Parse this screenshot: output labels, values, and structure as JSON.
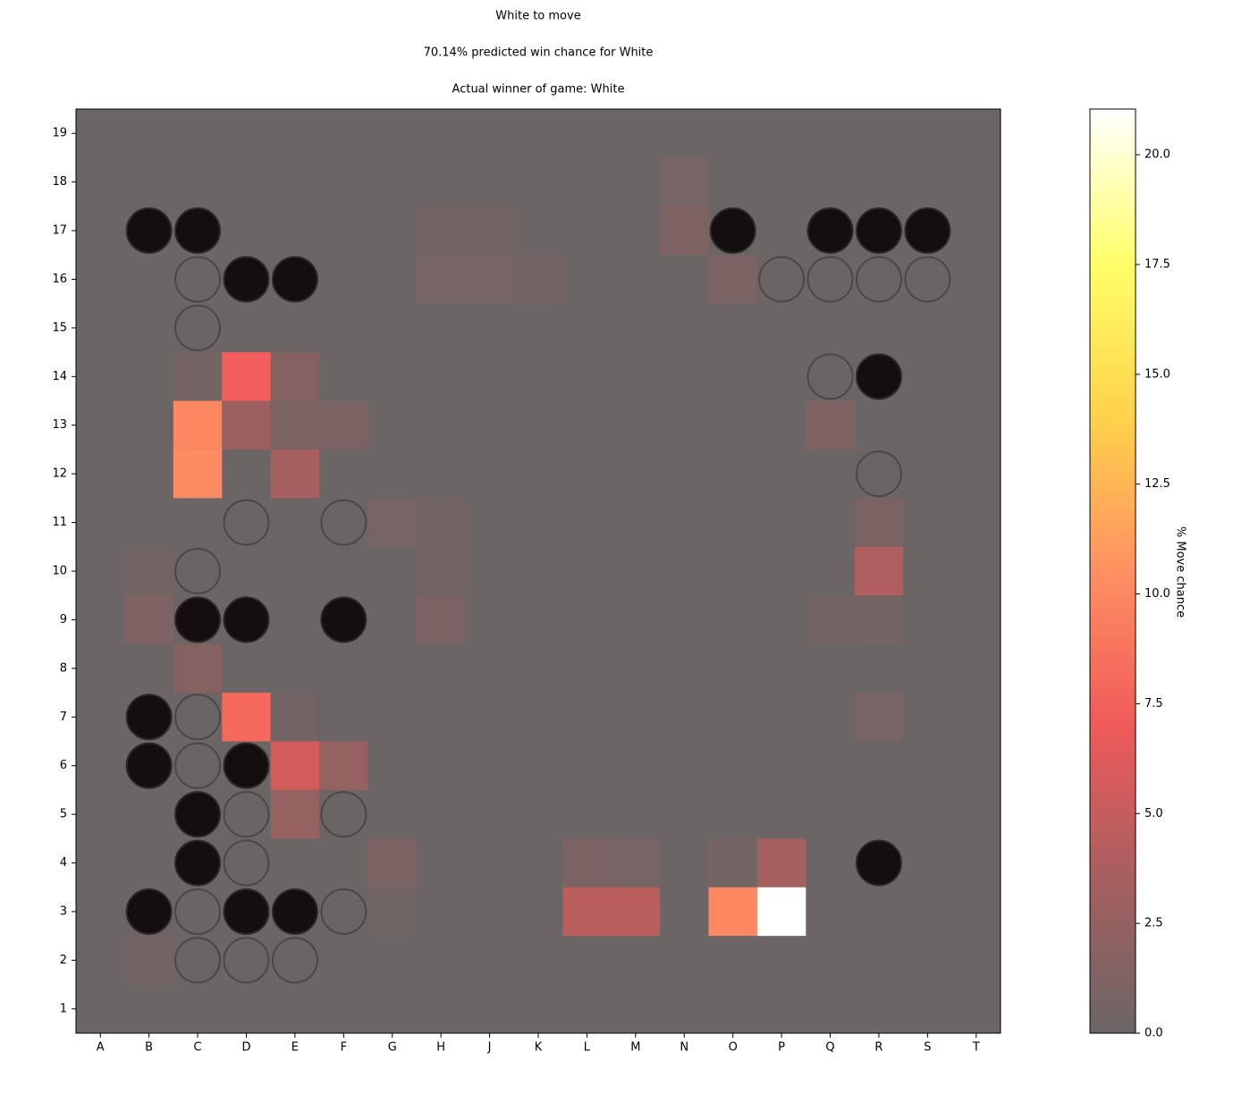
{
  "chart_data": {
    "type": "heatmap",
    "title": "White to move",
    "subtitle": "70.14% predicted win chance for White",
    "annotation": "Actual winner of game: White",
    "categories": [
      "A",
      "B",
      "C",
      "D",
      "E",
      "F",
      "G",
      "H",
      "J",
      "K",
      "L",
      "M",
      "N",
      "O",
      "P",
      "Q",
      "R",
      "S",
      "T"
    ],
    "ylim": [
      0.5,
      19.5
    ],
    "yticks": [
      1,
      2,
      3,
      4,
      5,
      6,
      7,
      8,
      9,
      10,
      11,
      12,
      13,
      14,
      15,
      16,
      17,
      18,
      19
    ],
    "board_color": "#6b6565",
    "colormap": [
      "#6b6565",
      "#a65f5f",
      "#f05a5a",
      "#ff9062",
      "#ffd24a",
      "#ffff6a",
      "#ffffff"
    ],
    "colorbar_label": "% Move chance",
    "colorbar_lim": [
      0,
      21.04
    ],
    "colorbar_ticks": [
      {
        "value": 0,
        "label": "0.0"
      },
      2.5,
      {
        "value": 5,
        "label": "5.0"
      },
      7.5,
      {
        "value": 10,
        "label": "10.0"
      },
      12.5,
      {
        "value": 15,
        "label": "15.0"
      },
      17.5,
      {
        "value": 20,
        "label": "20.0"
      }
    ],
    "heat": [
      {
        "x": "N",
        "y": 18,
        "value": 0.7
      },
      {
        "x": "N",
        "y": 17,
        "value": 1.2
      },
      {
        "x": "H",
        "y": 17,
        "value": 0.5
      },
      {
        "x": "J",
        "y": 17,
        "value": 0.5
      },
      {
        "x": "H",
        "y": 16,
        "value": 0.7
      },
      {
        "x": "J",
        "y": 16,
        "value": 0.7
      },
      {
        "x": "K",
        "y": 16,
        "value": 0.6
      },
      {
        "x": "O",
        "y": 16,
        "value": 1.0
      },
      {
        "x": "C",
        "y": 14,
        "value": 0.6
      },
      {
        "x": "D",
        "y": 14,
        "value": 7.3
      },
      {
        "x": "E",
        "y": 14,
        "value": 1.5
      },
      {
        "x": "C",
        "y": 13,
        "value": 10
      },
      {
        "x": "D",
        "y": 13,
        "value": 3
      },
      {
        "x": "E",
        "y": 13,
        "value": 1
      },
      {
        "x": "F",
        "y": 13,
        "value": 1
      },
      {
        "x": "Q",
        "y": 13,
        "value": 1.2
      },
      {
        "x": "C",
        "y": 12,
        "value": 10.2
      },
      {
        "x": "E",
        "y": 12,
        "value": 3.5
      },
      {
        "x": "G",
        "y": 11,
        "value": 0.7
      },
      {
        "x": "H",
        "y": 11,
        "value": 0.5
      },
      {
        "x": "R",
        "y": 11,
        "value": 1.0
      },
      {
        "x": "B",
        "y": 10,
        "value": 0.5
      },
      {
        "x": "H",
        "y": 10,
        "value": 0.5
      },
      {
        "x": "R",
        "y": 10,
        "value": 4
      },
      {
        "x": "B",
        "y": 9,
        "value": 1.2
      },
      {
        "x": "H",
        "y": 9,
        "value": 1
      },
      {
        "x": "Q",
        "y": 9,
        "value": 0.5
      },
      {
        "x": "R",
        "y": 9,
        "value": 0.6
      },
      {
        "x": "C",
        "y": 8,
        "value": 1.5
      },
      {
        "x": "D",
        "y": 7,
        "value": 8
      },
      {
        "x": "E",
        "y": 7,
        "value": 0.4
      },
      {
        "x": "R",
        "y": 7,
        "value": 0.7
      },
      {
        "x": "E",
        "y": 6,
        "value": 5.5
      },
      {
        "x": "F",
        "y": 6,
        "value": 2.5
      },
      {
        "x": "E",
        "y": 5,
        "value": 2.5
      },
      {
        "x": "G",
        "y": 4,
        "value": 1.0
      },
      {
        "x": "L",
        "y": 4,
        "value": 1
      },
      {
        "x": "M",
        "y": 4,
        "value": 0.7
      },
      {
        "x": "O",
        "y": 4,
        "value": 0.6
      },
      {
        "x": "P",
        "y": 4,
        "value": 3.5
      },
      {
        "x": "G",
        "y": 3,
        "value": 0.3
      },
      {
        "x": "L",
        "y": 3,
        "value": 4.5
      },
      {
        "x": "M",
        "y": 3,
        "value": 4.5
      },
      {
        "x": "O",
        "y": 3,
        "value": 10
      },
      {
        "x": "P",
        "y": 3,
        "value": 21
      },
      {
        "x": "B",
        "y": 2,
        "value": 0.5
      }
    ],
    "stones": {
      "black": [
        {
          "x": "B",
          "y": 17
        },
        {
          "x": "C",
          "y": 17
        },
        {
          "x": "O",
          "y": 17
        },
        {
          "x": "Q",
          "y": 17
        },
        {
          "x": "R",
          "y": 17
        },
        {
          "x": "S",
          "y": 17
        },
        {
          "x": "D",
          "y": 16
        },
        {
          "x": "E",
          "y": 16
        },
        {
          "x": "R",
          "y": 14
        },
        {
          "x": "C",
          "y": 9
        },
        {
          "x": "D",
          "y": 9
        },
        {
          "x": "F",
          "y": 9
        },
        {
          "x": "B",
          "y": 7
        },
        {
          "x": "B",
          "y": 6
        },
        {
          "x": "D",
          "y": 6
        },
        {
          "x": "C",
          "y": 5
        },
        {
          "x": "C",
          "y": 4
        },
        {
          "x": "R",
          "y": 4
        },
        {
          "x": "B",
          "y": 3
        },
        {
          "x": "D",
          "y": 3
        },
        {
          "x": "E",
          "y": 3
        }
      ],
      "white": [
        {
          "x": "C",
          "y": 16
        },
        {
          "x": "P",
          "y": 16
        },
        {
          "x": "Q",
          "y": 16
        },
        {
          "x": "R",
          "y": 16
        },
        {
          "x": "S",
          "y": 16
        },
        {
          "x": "C",
          "y": 15
        },
        {
          "x": "Q",
          "y": 14
        },
        {
          "x": "R",
          "y": 12
        },
        {
          "x": "D",
          "y": 11
        },
        {
          "x": "F",
          "y": 11
        },
        {
          "x": "C",
          "y": 10
        },
        {
          "x": "C",
          "y": 7
        },
        {
          "x": "C",
          "y": 6
        },
        {
          "x": "D",
          "y": 5
        },
        {
          "x": "F",
          "y": 5
        },
        {
          "x": "D",
          "y": 4
        },
        {
          "x": "C",
          "y": 3
        },
        {
          "x": "F",
          "y": 3
        },
        {
          "x": "C",
          "y": 2
        },
        {
          "x": "D",
          "y": 2
        },
        {
          "x": "E",
          "y": 2
        }
      ]
    }
  }
}
